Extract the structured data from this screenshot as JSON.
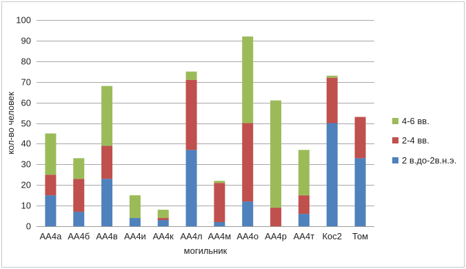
{
  "chart_data": {
    "type": "bar",
    "stacked": true,
    "xlabel": "могильник",
    "ylabel": "кол-во человек",
    "ylim": [
      0,
      100
    ],
    "yticks": [
      0,
      10,
      20,
      30,
      40,
      50,
      60,
      70,
      80,
      90,
      100
    ],
    "grid": true,
    "legend_position": "right",
    "categories": [
      "АА4а",
      "АА4б",
      "АА4в",
      "АА4и",
      "АА4к",
      "АА4л",
      "АА4м",
      "АА4о",
      "АА4р",
      "АА4т",
      "Кос2",
      "Том"
    ],
    "series": [
      {
        "name": "2 в.до-2в.н.э.",
        "color": "#4f81bd",
        "values": [
          15,
          7,
          23,
          4,
          3,
          37,
          2,
          12,
          0,
          6,
          50,
          33
        ]
      },
      {
        "name": "2-4 вв.",
        "color": "#c0504d",
        "values": [
          10,
          16,
          16,
          0,
          1,
          34,
          19,
          38,
          9,
          9,
          22,
          20
        ]
      },
      {
        "name": "4-6 вв.",
        "color": "#9bbb59",
        "values": [
          20,
          10,
          29,
          11,
          4,
          4,
          1,
          42,
          52,
          22,
          1,
          0
        ]
      }
    ]
  }
}
